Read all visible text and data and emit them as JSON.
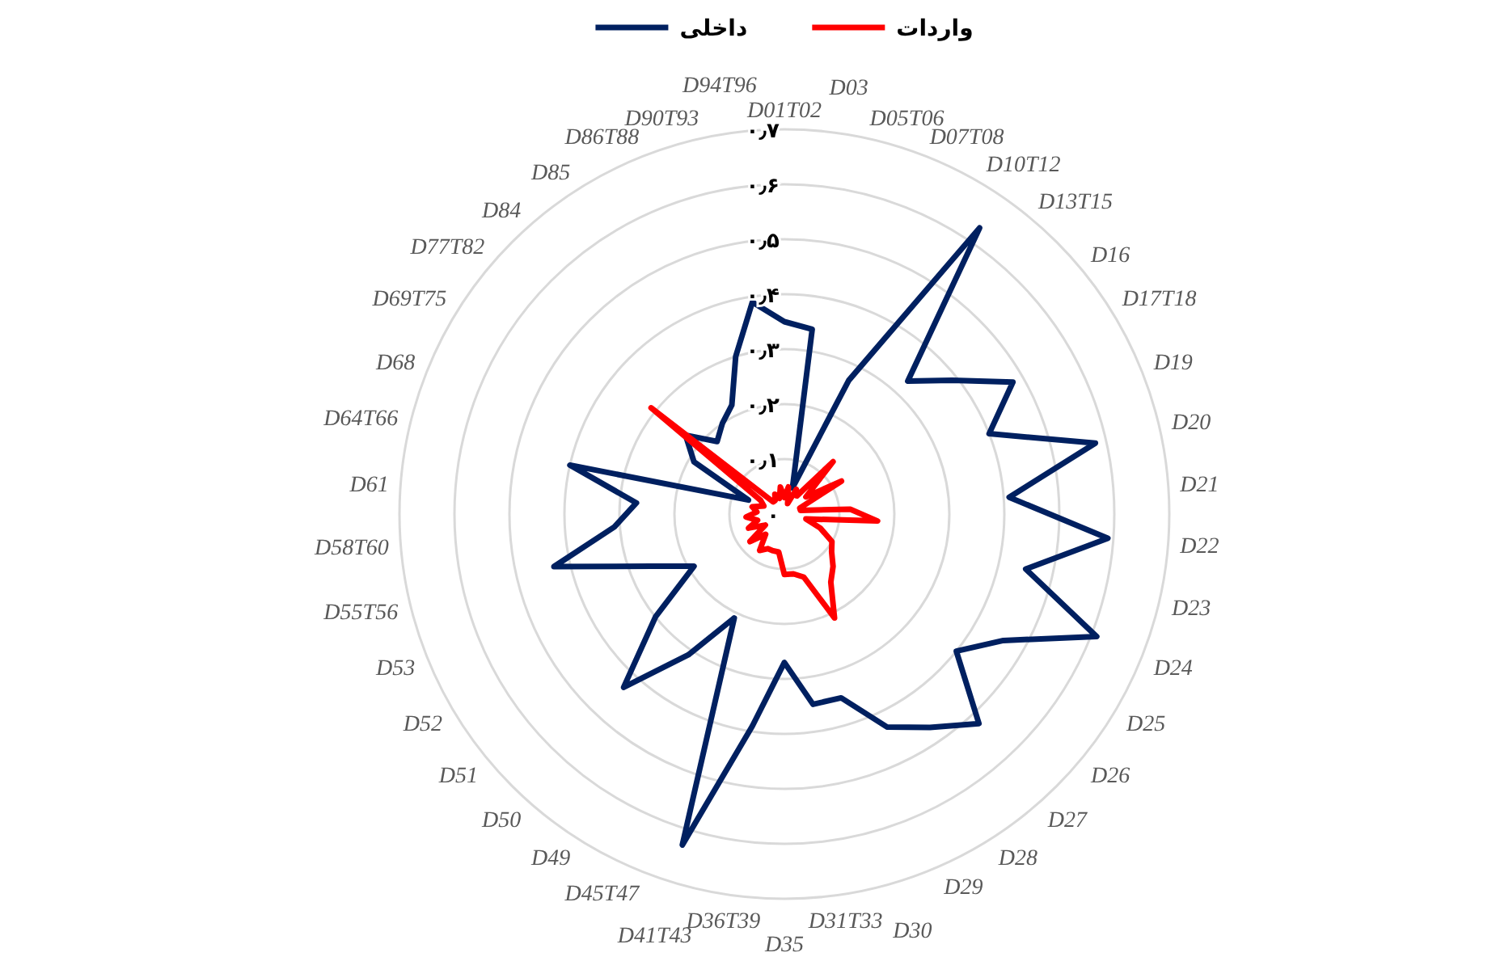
{
  "chart_data": {
    "type": "radar",
    "categories": [
      "D01T02",
      "D03",
      "D05T06",
      "D07T08",
      "D10T12",
      "D13T15",
      "D16",
      "D17T18",
      "D19",
      "D20",
      "D21",
      "D22",
      "D23",
      "D24",
      "D25",
      "D26",
      "D27",
      "D28",
      "D29",
      "D30",
      "D31T33",
      "D35",
      "D36T39",
      "D41T43",
      "D45T47",
      "D49",
      "D50",
      "D51",
      "D52",
      "D53",
      "D55T56",
      "D58T60",
      "D61",
      "D64T66",
      "D68",
      "D69T75",
      "D77T82",
      "D84",
      "D85",
      "D86T88",
      "D90T93",
      "D94T96"
    ],
    "series": [
      {
        "name": "داخلی",
        "color": "#002060",
        "values": [
          0.35,
          0.34,
          0.05,
          0.27,
          0.63,
          0.33,
          0.39,
          0.48,
          0.4,
          0.58,
          0.41,
          0.59,
          0.45,
          0.61,
          0.46,
          0.4,
          0.52,
          0.47,
          0.43,
          0.35,
          0.35,
          0.27,
          0.39,
          0.63,
          0.21,
          0.31,
          0.43,
          0.3,
          0.19,
          0.26,
          0.43,
          0.31,
          0.27,
          0.4,
          0.07,
          0.19,
          0.23,
          0.18,
          0.2,
          0.22,
          0.3,
          0.39
        ]
      },
      {
        "name": "واردات",
        "color": "#ff0000",
        "values": [
          0.03,
          0.05,
          0.02,
          0.05,
          0.04,
          0.13,
          0.05,
          0.12,
          0.03,
          0.03,
          0.12,
          0.17,
          0.04,
          0.07,
          0.1,
          0.11,
          0.13,
          0.15,
          0.21,
          0.12,
          0.11,
          0.11,
          0.07,
          0.07,
          0.07,
          0.08,
          0.05,
          0.08,
          0.04,
          0.07,
          0.05,
          0.07,
          0.05,
          0.06,
          0.04,
          0.05,
          0.31,
          0.03,
          0.03,
          0.04,
          0.03,
          0.05
        ]
      }
    ],
    "ylim": [
      0,
      0.7
    ],
    "yticks": [
      {
        "value": 0,
        "label": "۰"
      },
      {
        "value": 0.1,
        "label": "۰٫۱"
      },
      {
        "value": 0.2,
        "label": "۰٫۲"
      },
      {
        "value": 0.3,
        "label": "۰٫۳"
      },
      {
        "value": 0.4,
        "label": "۰٫۴"
      },
      {
        "value": 0.5,
        "label": "۰٫۵"
      },
      {
        "value": 0.6,
        "label": "۰٫۶"
      },
      {
        "value": 0.7,
        "label": "۰٫۷"
      }
    ],
    "grid": true,
    "legend": "top",
    "marker": "none",
    "line_style": "solid"
  }
}
